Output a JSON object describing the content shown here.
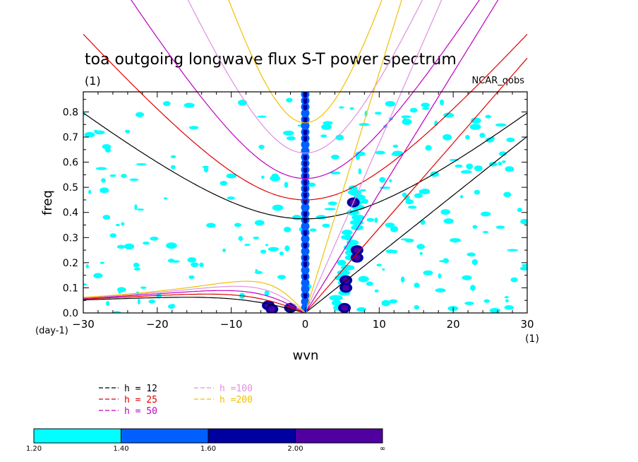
{
  "chart_data": {
    "type": "contour",
    "title": "toa outgoing longwave flux S-T power spectrum",
    "subtitle": "(1)",
    "dataset_label": "NCAR_qobs",
    "xlabel": "wvn",
    "ylabel": "freq",
    "x_unit_label": "(1)",
    "y_unit_label": "(day-1)",
    "xlim": [
      -30,
      30
    ],
    "ylim": [
      0.0,
      0.88
    ],
    "x_ticks": [
      "−30",
      "−20",
      "−10",
      "0",
      "10",
      "20",
      "30"
    ],
    "x_tick_values": [
      -30,
      -20,
      -10,
      0,
      10,
      20,
      30
    ],
    "y_ticks": [
      "0.0",
      "0.1",
      "0.2",
      "0.3",
      "0.4",
      "0.5",
      "0.6",
      "0.7",
      "0.8"
    ],
    "y_tick_values": [
      0.0,
      0.1,
      0.2,
      0.3,
      0.4,
      0.5,
      0.6,
      0.7,
      0.8
    ],
    "dispersion_curves": [
      {
        "name": "h = 12",
        "color": "#000000",
        "equivalent_depth": 12
      },
      {
        "name": "h = 25",
        "color": "#e00000",
        "equivalent_depth": 25
      },
      {
        "name": "h = 50",
        "color": "#c000c0",
        "equivalent_depth": 50
      },
      {
        "name": "h =100",
        "color": "#e090e0",
        "equivalent_depth": 100
      },
      {
        "name": "h =200",
        "color": "#f0c000",
        "equivalent_depth": 200
      }
    ],
    "colorbar": {
      "labels": [
        "1.20",
        "1.40",
        "1.60",
        "2.00",
        "∞"
      ],
      "colors": [
        "#00ffff",
        "#0060ff",
        "#0000a0",
        "#5000a0"
      ]
    },
    "power_features": [
      {
        "wvn": 0,
        "freq_range": [
          0.0,
          0.88
        ],
        "level": "1.40–2.00"
      },
      {
        "wvn": 5,
        "freq_range": [
          0.0,
          0.13
        ],
        "level": "2.00–∞"
      },
      {
        "wvn": 7,
        "freq_range": [
          0.2,
          0.45
        ],
        "level": "1.60–∞"
      },
      {
        "wvn": -5,
        "freq_range": [
          0.0,
          0.06
        ],
        "level": "2.00–∞"
      }
    ]
  }
}
